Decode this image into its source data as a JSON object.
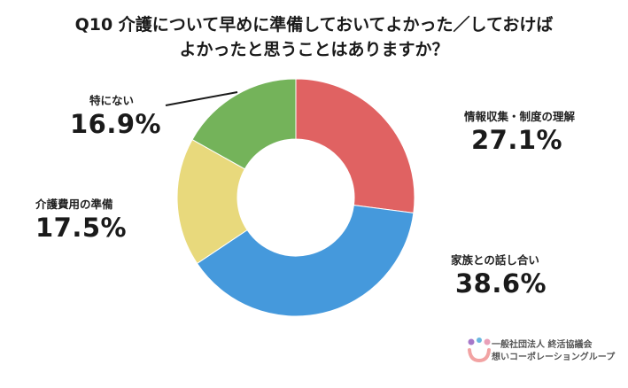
{
  "title_lines": [
    "Q10 介護について早めに準備しておいてよかった／しておけば",
    "よかったと思うことはありますか？"
  ],
  "chart_data": {
    "type": "pie",
    "donut": true,
    "title": "Q10 介護について早めに準備しておいてよかった／しておけば よかったと思うことはありますか？",
    "slices": [
      {
        "label": "情報収集・制度の理解",
        "value": 27.1,
        "display": "27.1%",
        "color": "#e06262"
      },
      {
        "label": "家族との話し合い",
        "value": 38.6,
        "display": "38.6%",
        "color": "#4599dc"
      },
      {
        "label": "介護費用の準備",
        "value": 17.5,
        "display": "17.5%",
        "color": "#e8d97c"
      },
      {
        "label": "特にない",
        "value": 16.9,
        "display": "16.9%",
        "color": "#74b35a"
      }
    ]
  },
  "logo": {
    "line1": "一般社団法人 終活協議会",
    "line2": "想いコーポレーショングループ"
  }
}
